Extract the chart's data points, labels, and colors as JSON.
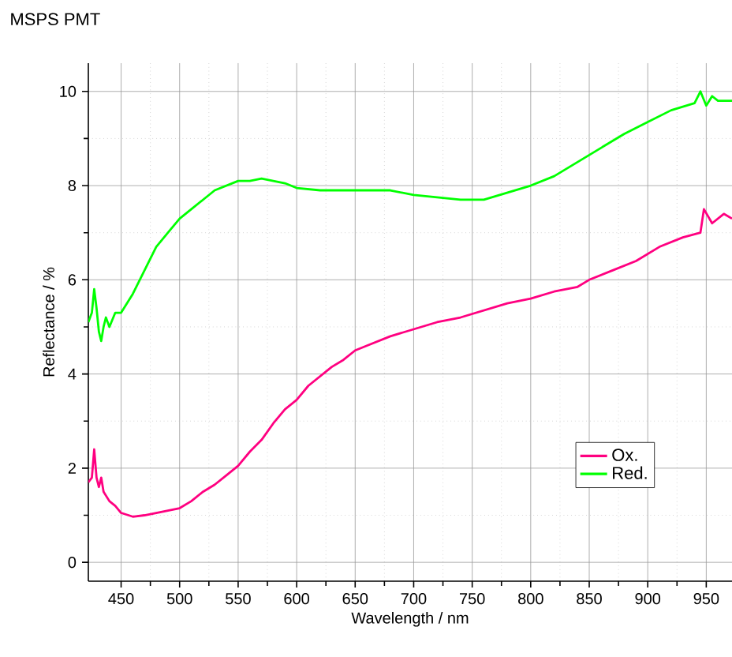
{
  "chart_data": {
    "type": "line",
    "title": "MSPS PMT",
    "xlabel": "Wavelength / nm",
    "ylabel": "Reflectance / %",
    "xlim": [
      422,
      972
    ],
    "ylim": [
      -0.4,
      10.6
    ],
    "xticks": [
      450,
      500,
      550,
      600,
      650,
      700,
      750,
      800,
      850,
      900,
      950
    ],
    "yticks": [
      0,
      2,
      4,
      6,
      8,
      10
    ],
    "grid": true,
    "legend": "bottom right",
    "line_style": "solid",
    "series": [
      {
        "name": "Ox.",
        "color": "#ff0080",
        "x": [
          422,
          425,
          427,
          429,
          431,
          433,
          435,
          440,
          445,
          450,
          460,
          470,
          480,
          490,
          500,
          510,
          520,
          530,
          540,
          550,
          560,
          570,
          580,
          590,
          600,
          610,
          620,
          630,
          640,
          650,
          660,
          680,
          700,
          720,
          740,
          760,
          780,
          800,
          820,
          840,
          850,
          870,
          890,
          910,
          930,
          945,
          948,
          955,
          965,
          972
        ],
        "values": [
          1.7,
          1.8,
          2.4,
          1.8,
          1.6,
          1.8,
          1.5,
          1.3,
          1.2,
          1.05,
          0.97,
          1.0,
          1.05,
          1.1,
          1.15,
          1.3,
          1.5,
          1.65,
          1.85,
          2.05,
          2.35,
          2.6,
          2.95,
          3.25,
          3.45,
          3.75,
          3.95,
          4.15,
          4.3,
          4.5,
          4.6,
          4.8,
          4.95,
          5.1,
          5.2,
          5.35,
          5.5,
          5.6,
          5.75,
          5.85,
          6.0,
          6.2,
          6.4,
          6.7,
          6.9,
          7.0,
          7.5,
          7.2,
          7.4,
          7.3
        ]
      },
      {
        "name": "Red.",
        "color": "#00ff00",
        "x": [
          422,
          425,
          427,
          429,
          431,
          433,
          435,
          437,
          440,
          445,
          450,
          460,
          470,
          480,
          490,
          500,
          510,
          520,
          530,
          540,
          550,
          560,
          570,
          580,
          590,
          600,
          620,
          640,
          660,
          680,
          700,
          720,
          740,
          760,
          780,
          800,
          820,
          840,
          860,
          880,
          900,
          920,
          940,
          945,
          950,
          955,
          960,
          972
        ],
        "values": [
          5.1,
          5.3,
          5.8,
          5.4,
          4.9,
          4.7,
          5.0,
          5.2,
          5.0,
          5.3,
          5.3,
          5.7,
          6.2,
          6.7,
          7.0,
          7.3,
          7.5,
          7.7,
          7.9,
          8.0,
          8.1,
          8.1,
          8.15,
          8.1,
          8.05,
          7.95,
          7.9,
          7.9,
          7.9,
          7.9,
          7.8,
          7.75,
          7.7,
          7.7,
          7.85,
          8.0,
          8.2,
          8.5,
          8.8,
          9.1,
          9.35,
          9.6,
          9.75,
          10.0,
          9.7,
          9.9,
          9.8,
          9.8
        ]
      }
    ]
  }
}
